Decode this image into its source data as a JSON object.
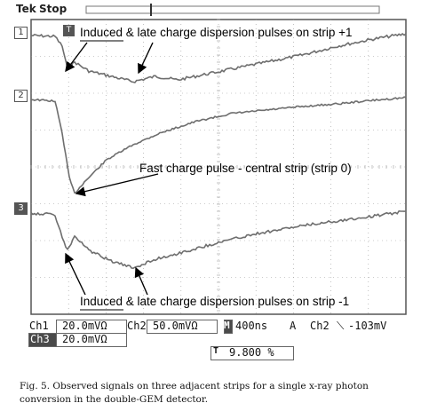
{
  "scope": {
    "brand": "Tek",
    "state": "Stop",
    "channel_markers": [
      "1",
      "2",
      "3"
    ],
    "trigger_marker": "T"
  },
  "annotations": {
    "top": "Induced & late charge dispersion pulses on strip +1",
    "middle": "Fast charge pulse - central strip (strip 0)",
    "bottom": "Induced & late charge dispersion pulses on strip -1"
  },
  "status": {
    "ch1_label": "Ch1",
    "ch1_value": "20.0mVΩ",
    "ch2_label": "Ch2",
    "ch2_value": "50.0mVΩ",
    "timebase_label": "M",
    "timebase_value": "400ns",
    "trig_label": "A",
    "trig_channel": "Ch2",
    "trig_value": "-103mV",
    "ch3_label": "Ch3",
    "ch3_value": "20.0mVΩ",
    "pos_value": "9.800 %"
  },
  "caption": {
    "text": "Fig. 5.  Observed signals on three adjacent strips for a single x-ray photon conversion in the double-GEM detector."
  },
  "colors": {
    "trace": "#6e6e6e",
    "grid": "#9a9a9a",
    "frame": "#555555"
  }
}
